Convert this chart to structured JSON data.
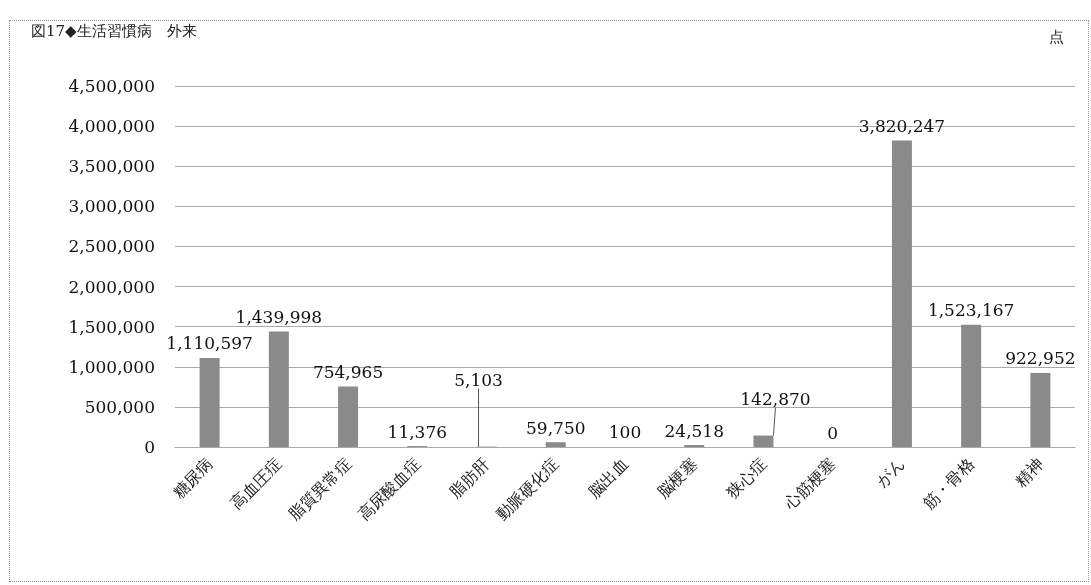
{
  "chart_data": {
    "type": "bar",
    "title": "図17◆生活習慣病　外来",
    "ylabel": "点",
    "categories": [
      "糖尿病",
      "高血圧症",
      "脂質異常症",
      "高尿酸血症",
      "脂肪肝",
      "動脈硬化症",
      "脳出血",
      "脳梗塞",
      "狭心症",
      "心筋梗塞",
      "がん",
      "筋・骨格",
      "精神"
    ],
    "values": [
      1110597,
      1439998,
      754965,
      11376,
      5103,
      59750,
      100,
      24518,
      142870,
      0,
      3820247,
      1523167,
      922952
    ],
    "value_labels": [
      "1,110,597",
      "1,439,998",
      "754,965",
      "11,376",
      "5,103",
      "59,750",
      "100",
      "24,518",
      "142,870",
      "0",
      "3,820,247",
      "1,523,167",
      "922,952"
    ],
    "color": "#8a8a8a",
    "ylim": [
      0,
      4500000
    ],
    "yticks": [
      {
        "value": 0,
        "label": "0"
      },
      {
        "value": 500000,
        "label": "500,000"
      },
      {
        "value": 1000000,
        "label": "1,000,000"
      },
      {
        "value": 1500000,
        "label": "1,500,000"
      },
      {
        "value": 2000000,
        "label": "2,000,000"
      },
      {
        "value": 2500000,
        "label": "2,500,000"
      },
      {
        "value": 3000000,
        "label": "3,000,000"
      },
      {
        "value": 3500000,
        "label": "3,500,000"
      },
      {
        "value": 4000000,
        "label": "4,000,000"
      },
      {
        "value": 4500000,
        "label": "4,500,000"
      }
    ],
    "grid": "y"
  }
}
